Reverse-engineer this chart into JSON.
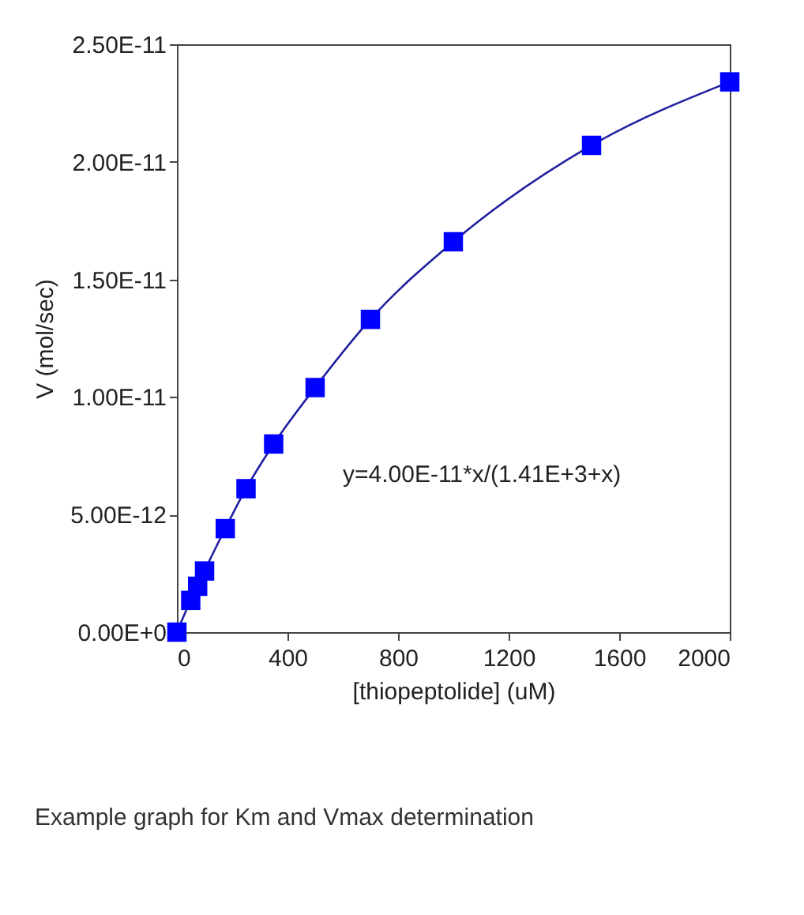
{
  "chart_data": {
    "type": "scatter",
    "xlabel": "[thiopeptolide] (uM)",
    "ylabel": "V (mol/sec)",
    "x": [
      0,
      50,
      75,
      100,
      175,
      250,
      350,
      500,
      700,
      1000,
      1500,
      2000
    ],
    "series": [
      {
        "type": "scatter",
        "color": "#0000ff",
        "marker": "square",
        "values": [
          0,
          1.35e-12,
          1.95e-12,
          2.6e-12,
          4.4e-12,
          6.1e-12,
          8e-12,
          1.04e-11,
          1.33e-11,
          1.66e-11,
          2.07e-11,
          2.34e-11
        ]
      },
      {
        "type": "line",
        "color": "#2020a0",
        "line_style": "solid",
        "values": [
          0,
          1.35e-12,
          1.95e-12,
          2.6e-12,
          4.4e-12,
          6.1e-12,
          8e-12,
          1.04e-11,
          1.33e-11,
          1.66e-11,
          2.07e-11,
          2.34e-11
        ]
      }
    ],
    "xlim": [
      0,
      2000
    ],
    "xticks": [
      0,
      400,
      800,
      1200,
      1600,
      2000
    ],
    "ylim": [
      0,
      2.5e-11
    ],
    "yticks": [
      {
        "value": 0,
        "label": "0.00E+0"
      },
      {
        "value": 5e-12,
        "label": "5.00E-12"
      },
      {
        "value": 1e-11,
        "label": "1.00E-11"
      },
      {
        "value": 1.5e-11,
        "label": "1.50E-11"
      },
      {
        "value": 2e-11,
        "label": "2.00E-11"
      },
      {
        "value": 2.5e-11,
        "label": "2.50E-11"
      }
    ],
    "grid": false,
    "annotations": [
      "y=4.00E-11*x/(1.41E+3+x)",
      "Example graph for Km and Vmax determination"
    ]
  }
}
